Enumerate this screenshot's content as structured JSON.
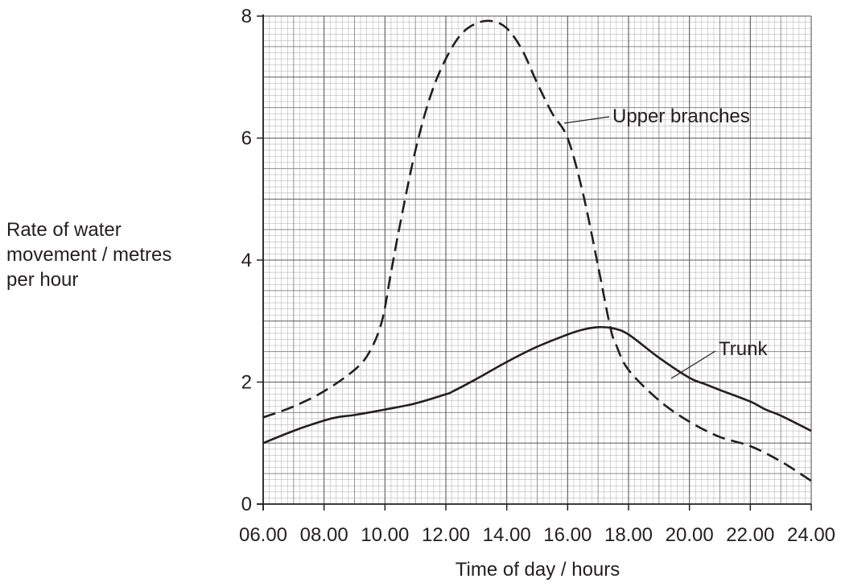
{
  "chart_data": {
    "type": "line",
    "title": "",
    "xlabel": "Time of day / hours",
    "ylabel_lines": [
      "Rate of water",
      "movement / metres",
      "per hour"
    ],
    "x_ticks": [
      "06.00",
      "08.00",
      "10.00",
      "12.00",
      "14.00",
      "16.00",
      "18.00",
      "20.00",
      "22.00",
      "24.00"
    ],
    "y_ticks": [
      "0",
      "2",
      "4",
      "6",
      "8"
    ],
    "xlim": [
      6,
      24
    ],
    "ylim": [
      0,
      8
    ],
    "grid": true,
    "series": [
      {
        "name": "Upper branches",
        "style": "dashed",
        "points": [
          [
            6,
            1.42
          ],
          [
            7,
            1.6
          ],
          [
            8,
            1.85
          ],
          [
            9,
            2.2
          ],
          [
            9.5,
            2.5
          ],
          [
            9.9,
            3.0
          ],
          [
            10.2,
            3.8
          ],
          [
            10.5,
            4.6
          ],
          [
            11,
            5.8
          ],
          [
            11.5,
            6.7
          ],
          [
            12,
            7.3
          ],
          [
            12.5,
            7.7
          ],
          [
            13,
            7.88
          ],
          [
            13.5,
            7.92
          ],
          [
            14,
            7.8
          ],
          [
            14.5,
            7.45
          ],
          [
            15,
            6.9
          ],
          [
            15.5,
            6.4
          ],
          [
            16,
            6.0
          ],
          [
            16.5,
            5.1
          ],
          [
            17,
            3.9
          ],
          [
            17.4,
            2.9
          ],
          [
            17.6,
            2.6
          ],
          [
            18,
            2.2
          ],
          [
            19,
            1.7
          ],
          [
            20,
            1.35
          ],
          [
            21,
            1.1
          ],
          [
            22,
            0.95
          ],
          [
            23,
            0.7
          ],
          [
            24,
            0.38
          ]
        ]
      },
      {
        "name": "Trunk",
        "style": "solid",
        "points": [
          [
            6,
            1.0
          ],
          [
            7,
            1.2
          ],
          [
            8,
            1.37
          ],
          [
            8.5,
            1.43
          ],
          [
            9,
            1.46
          ],
          [
            10,
            1.55
          ],
          [
            11,
            1.65
          ],
          [
            12,
            1.8
          ],
          [
            12.2,
            1.84
          ],
          [
            13,
            2.05
          ],
          [
            14,
            2.33
          ],
          [
            15,
            2.58
          ],
          [
            16,
            2.78
          ],
          [
            16.5,
            2.86
          ],
          [
            17,
            2.9
          ],
          [
            17.5,
            2.88
          ],
          [
            18,
            2.78
          ],
          [
            19,
            2.4
          ],
          [
            20,
            2.07
          ],
          [
            20.5,
            1.97
          ],
          [
            21,
            1.87
          ],
          [
            22,
            1.68
          ],
          [
            22.5,
            1.55
          ],
          [
            23,
            1.45
          ],
          [
            24,
            1.2
          ]
        ]
      }
    ],
    "annotations": [
      "Upper branches",
      "Trunk"
    ]
  }
}
